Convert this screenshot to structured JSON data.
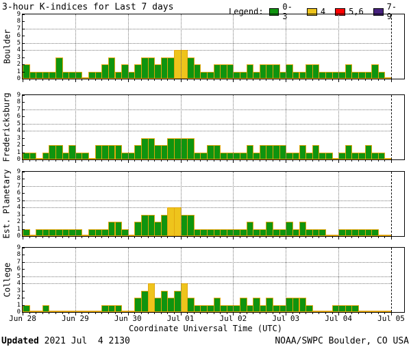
{
  "title": "3-hour K-indices for Last 7 days",
  "legend": {
    "label": "Legend:",
    "items": [
      {
        "label": "0-3",
        "color": "#0f940f"
      },
      {
        "label": "4",
        "color": "#eec41c"
      },
      {
        "label": "5,6",
        "color": "#ff0000"
      },
      {
        "label": "7-9",
        "color": "#46217e"
      }
    ]
  },
  "xlabel": "Coordinate Universal Time (UTC)",
  "footer": {
    "updated_label": "Updated",
    "updated_value": " 2021 Jul  4 2130",
    "credit": "NOAA/SWPC Boulder, CO USA"
  },
  "chart_data": {
    "type": "bar",
    "title": "3-hour K-indices for Last 7 days",
    "xlabel": "Coordinate Universal Time (UTC)",
    "bar_interval_hours": 3,
    "ylim": [
      0,
      9
    ],
    "y_tick_labels": [
      "0",
      "1",
      "2",
      "3",
      "4",
      "5",
      "6",
      "7",
      "8",
      "9"
    ],
    "threshold_gridlines": [
      4,
      5,
      7
    ],
    "x_tick_labels": [
      "Jun 28",
      "Jun 29",
      "Jun 30",
      "Jul 01",
      "Jul 02",
      "Jul 03",
      "Jul 04",
      "Jul 05"
    ],
    "days": [
      "Jun 28",
      "Jun 29",
      "Jun 30",
      "Jul 01",
      "Jul 02",
      "Jul 03",
      "Jul 04"
    ],
    "color_thresholds": [
      {
        "max": 3,
        "color": "#0f940f"
      },
      {
        "max": 4,
        "color": "#eec41c"
      },
      {
        "max": 6,
        "color": "#ff0000"
      },
      {
        "max": 9,
        "color": "#46217e"
      }
    ],
    "bar_outline_color": "#e2a60e",
    "panels": [
      {
        "station": "Boulder",
        "k_values_by_day": [
          [
            2,
            1,
            1,
            1,
            1,
            3,
            1,
            1
          ],
          [
            1,
            0,
            1,
            1,
            2,
            3,
            1,
            2
          ],
          [
            1,
            2,
            3,
            3,
            2,
            3,
            3,
            4
          ],
          [
            4,
            3,
            2,
            1,
            1,
            2,
            2,
            2
          ],
          [
            1,
            1,
            2,
            1,
            2,
            2,
            2,
            1
          ],
          [
            2,
            1,
            1,
            2,
            2,
            1,
            1,
            1
          ],
          [
            1,
            2,
            1,
            1,
            1,
            2,
            1,
            0
          ]
        ]
      },
      {
        "station": "Fredericksburg",
        "k_values_by_day": [
          [
            1,
            1,
            0,
            1,
            2,
            2,
            1,
            2
          ],
          [
            1,
            1,
            0,
            2,
            2,
            2,
            2,
            1
          ],
          [
            1,
            2,
            3,
            3,
            2,
            2,
            3,
            3
          ],
          [
            3,
            3,
            1,
            1,
            2,
            2,
            1,
            1
          ],
          [
            1,
            1,
            2,
            1,
            2,
            2,
            2,
            2
          ],
          [
            1,
            1,
            2,
            1,
            2,
            1,
            1,
            0
          ],
          [
            1,
            2,
            1,
            1,
            2,
            1,
            1,
            0
          ]
        ]
      },
      {
        "station": "Est. Planetary",
        "k_values_by_day": [
          [
            1,
            0,
            1,
            1,
            1,
            1,
            1,
            1
          ],
          [
            1,
            0,
            1,
            1,
            1,
            2,
            2,
            1
          ],
          [
            0,
            2,
            3,
            3,
            2,
            3,
            4,
            4
          ],
          [
            3,
            3,
            1,
            1,
            1,
            1,
            1,
            1
          ],
          [
            1,
            1,
            2,
            1,
            1,
            2,
            1,
            1
          ],
          [
            2,
            1,
            2,
            1,
            1,
            1,
            0,
            0
          ],
          [
            1,
            1,
            1,
            1,
            1,
            1,
            0,
            0
          ]
        ]
      },
      {
        "station": "College",
        "k_values_by_day": [
          [
            1,
            0,
            0,
            1,
            0,
            0,
            0,
            0
          ],
          [
            0,
            0,
            0,
            0,
            1,
            1,
            1,
            0
          ],
          [
            0,
            2,
            3,
            4,
            2,
            3,
            2,
            3
          ],
          [
            4,
            2,
            1,
            1,
            1,
            2,
            1,
            1
          ],
          [
            1,
            2,
            1,
            2,
            1,
            2,
            1,
            1
          ],
          [
            2,
            2,
            2,
            1,
            0,
            0,
            0,
            1
          ],
          [
            1,
            1,
            1,
            0,
            0,
            0,
            0,
            0
          ]
        ]
      }
    ]
  }
}
